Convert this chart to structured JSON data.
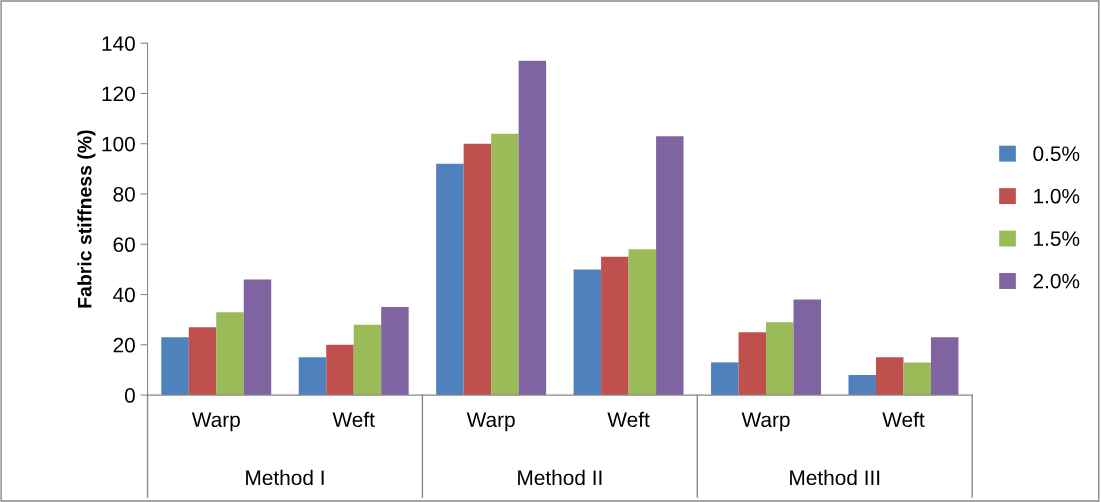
{
  "chart_data": {
    "type": "bar",
    "ylabel": "Fabric stiffness (%)",
    "categories": [
      "Warp",
      "Weft",
      "Warp",
      "Weft",
      "Warp",
      "Weft"
    ],
    "annotations": [
      "Method I",
      "Method II",
      "Method III"
    ],
    "series": [
      {
        "name": "0.5%",
        "color": "#4f81bd",
        "values": [
          23,
          15,
          92,
          50,
          13,
          8
        ]
      },
      {
        "name": "1.0%",
        "color": "#c0504d",
        "values": [
          27,
          20,
          100,
          55,
          25,
          15
        ]
      },
      {
        "name": "1.5%",
        "color": "#9bbb59",
        "values": [
          33,
          28,
          104,
          58,
          29,
          13
        ]
      },
      {
        "name": "2.0%",
        "color": "#8064a2",
        "values": [
          46,
          35,
          133,
          103,
          38,
          23
        ]
      }
    ],
    "ylim": [
      0,
      140
    ],
    "yticks": [
      0,
      20,
      40,
      60,
      80,
      100,
      120,
      140
    ],
    "grid": false,
    "legend": "right"
  }
}
